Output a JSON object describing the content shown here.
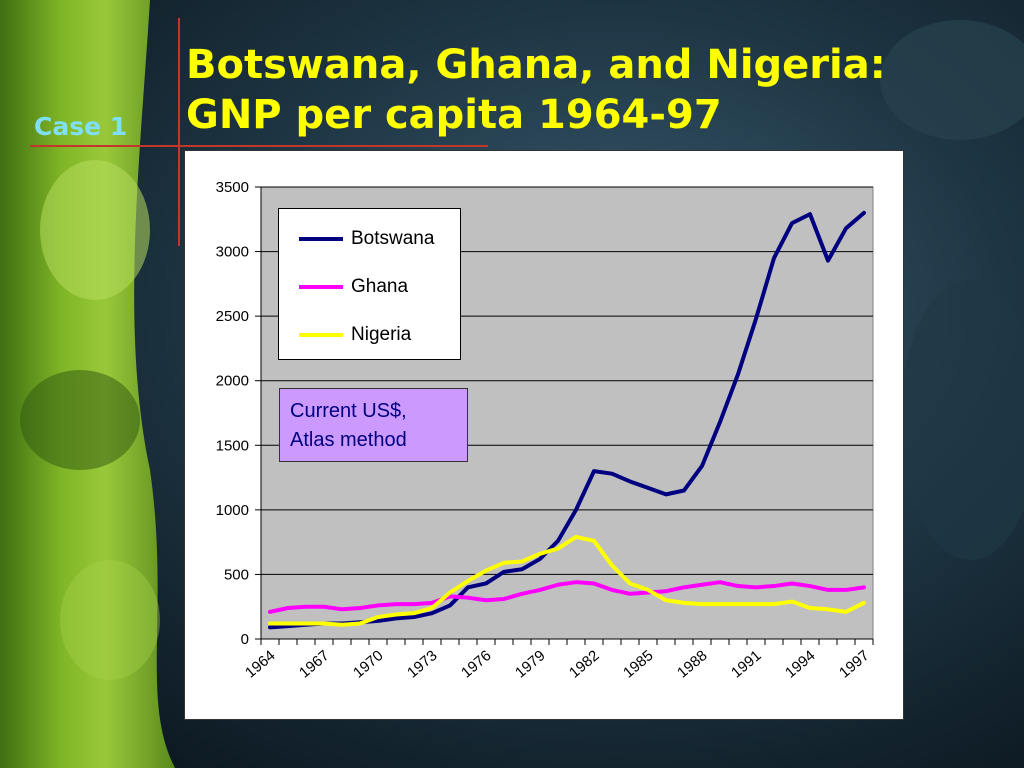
{
  "slide": {
    "case_label": "Case 1",
    "title_line1": "Botswana, Ghana, and Nigeria:",
    "title_line2": "GNP per capita 1964-97"
  },
  "note": {
    "line1": "Current US$,",
    "line2": "Atlas method"
  },
  "colors": {
    "title": "#ffff00",
    "case_label": "#7fe0f5",
    "rule": "#c2362b",
    "plot_area": "#c0c0c0",
    "note_fill": "#cc99ff",
    "note_text": "#000080"
  },
  "chart_data": {
    "type": "line",
    "title": "",
    "xlabel": "",
    "ylabel": "",
    "ylim": [
      0,
      3500
    ],
    "yticks": [
      0,
      500,
      1000,
      1500,
      2000,
      2500,
      3000,
      3500
    ],
    "x": [
      1964,
      1965,
      1966,
      1967,
      1968,
      1969,
      1970,
      1971,
      1972,
      1973,
      1974,
      1975,
      1976,
      1977,
      1978,
      1979,
      1980,
      1981,
      1982,
      1983,
      1984,
      1985,
      1986,
      1987,
      1988,
      1989,
      1990,
      1991,
      1992,
      1993,
      1994,
      1995,
      1996,
      1997
    ],
    "xticks": [
      "1964",
      "1967",
      "1970",
      "1973",
      "1976",
      "1979",
      "1982",
      "1985",
      "1988",
      "1991",
      "1994",
      "1997"
    ],
    "grid": true,
    "legend_position": "top-left",
    "series": [
      {
        "name": "Botswana",
        "color": "#000080",
        "values": [
          90,
          100,
          110,
          120,
          120,
          130,
          140,
          160,
          170,
          200,
          260,
          400,
          430,
          520,
          540,
          620,
          760,
          1000,
          1300,
          1280,
          1220,
          1170,
          1120,
          1150,
          1340,
          1680,
          2050,
          2480,
          2950,
          3220,
          3290,
          2930,
          3180,
          3300
        ]
      },
      {
        "name": "Ghana",
        "color": "#ff00ff",
        "values": [
          210,
          240,
          250,
          250,
          230,
          240,
          260,
          270,
          270,
          280,
          330,
          320,
          300,
          310,
          350,
          380,
          420,
          440,
          430,
          380,
          350,
          360,
          370,
          400,
          420,
          440,
          410,
          400,
          410,
          430,
          410,
          380,
          380,
          400
        ]
      },
      {
        "name": "Nigeria",
        "color": "#ffff00",
        "values": [
          120,
          120,
          120,
          120,
          110,
          120,
          170,
          190,
          200,
          240,
          360,
          450,
          530,
          590,
          600,
          660,
          700,
          790,
          760,
          570,
          430,
          380,
          300,
          280,
          270,
          270,
          270,
          270,
          270,
          290,
          240,
          230,
          210,
          280
        ]
      }
    ]
  }
}
